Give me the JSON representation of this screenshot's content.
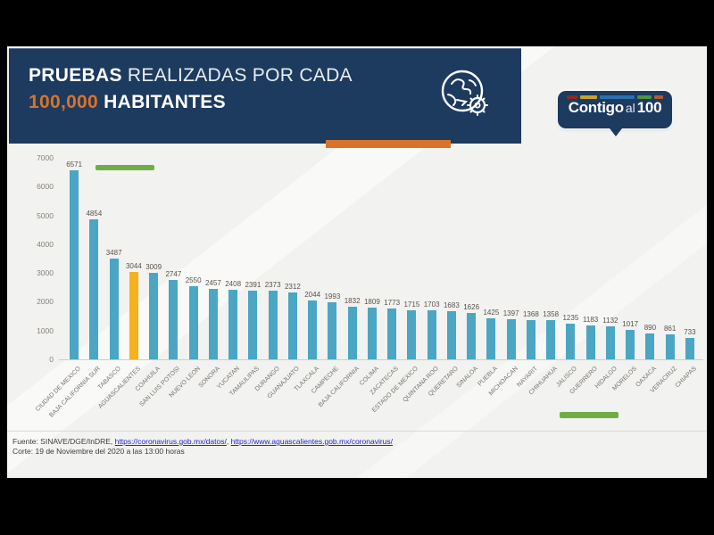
{
  "colors": {
    "navy": "#1d3a5f",
    "orange": "#d8732b",
    "bar_teal": "#4aa6c3",
    "bar_highlight": "#f6b11d",
    "green_marker": "#6fae44",
    "link_blue": "#2222cc"
  },
  "header": {
    "title_line1_bold": "PRUEBAS",
    "title_line1_rest": " REALIZADAS POR CADA",
    "title_line2_accent": "100,000",
    "title_line2_rest": " HABITANTES",
    "icon": "globe-virus-icon"
  },
  "logo": {
    "text_bold1": "Contigo",
    "text_light": "al",
    "text_bold2": "100",
    "stripe_colors": [
      "#8f2a1e",
      "#c9a227",
      "#2f6fae",
      "#4d9440",
      "#b65a2c"
    ],
    "stripe_widths": [
      14,
      22,
      44,
      18,
      12
    ]
  },
  "chart_data": {
    "type": "bar",
    "title": "PRUEBAS REALIZADAS POR CADA 100,000 HABITANTES",
    "categories": [
      "CIUDAD DE MEXICO",
      "BAJA CALIFORNIA SUR",
      "TABASCO",
      "AGUASCALIENTES",
      "COAHUILA",
      "SAN LUIS POTOSI",
      "NUEVO LEON",
      "SONORA",
      "YUCATAN",
      "TAMAULIPAS",
      "DURANGO",
      "GUANAJUATO",
      "TLAXCALA",
      "CAMPECHE",
      "BAJA CALIFORNIA",
      "COLIMA",
      "ZACATECAS",
      "ESTADO DE MEXICO",
      "QUINTANA ROO",
      "QUERETARO",
      "SINALOA",
      "PUEBLA",
      "MICHOACAN",
      "NAYARIT",
      "CHIHUAHUA",
      "JALISCO",
      "GUERRERO",
      "HIDALGO",
      "MORELOS",
      "OAXACA",
      "VERACRUZ",
      "CHIAPAS"
    ],
    "values": [
      6571,
      4854,
      3487,
      3044,
      3009,
      2747,
      2550,
      2457,
      2408,
      2391,
      2373,
      2312,
      2044,
      1993,
      1832,
      1809,
      1773,
      1715,
      1703,
      1683,
      1626,
      1425,
      1397,
      1368,
      1358,
      1235,
      1183,
      1132,
      1017,
      890,
      861,
      733
    ],
    "highlight_index": 3,
    "highlight_category": "AGUASCALIENTES",
    "xlabel": "",
    "ylabel": "",
    "ylim": [
      0,
      7000
    ],
    "y_ticks": [
      0,
      1000,
      2000,
      3000,
      4000,
      5000,
      6000,
      7000
    ],
    "grid": false,
    "legend": "none",
    "value_labels": true
  },
  "footer": {
    "source_prefix": "Fuente: SINAVE/DGE/InDRE, ",
    "link1": "https://coronavirus.gob.mx/datos/",
    "separator": ", ",
    "link2": "https://www.aguascalientes.gob.mx/coronavirus/",
    "cutoff": "Corte: 19 de Noviembre del 2020 a las 13:00 horas"
  }
}
